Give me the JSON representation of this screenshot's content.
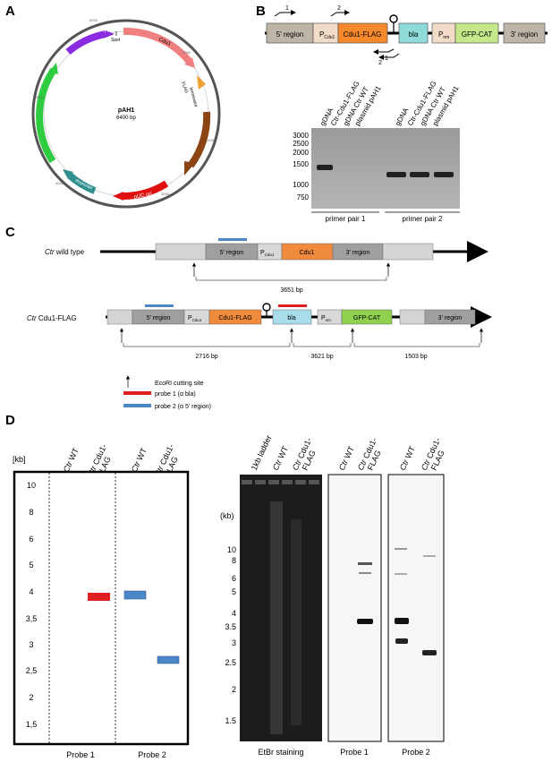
{
  "panel_labels": {
    "a": "A",
    "b": "B",
    "c": "C",
    "d": "D"
  },
  "plasmid": {
    "name": "pAH1",
    "size": "6400 bp",
    "features": {
      "three_region": "3'region",
      "cdu1": "Cdu1",
      "flag": "FLAG",
      "terminator": "terminator",
      "bla": "Bla",
      "puc_ori": "pUC ori",
      "promoter": "Promoter",
      "gfp_cat": "GFP-CAT",
      "spei": "SpeI"
    },
    "ticks": [
      "1000",
      "2000",
      "3000",
      "4000",
      "5000",
      "6000"
    ]
  },
  "construct_b": {
    "five_region": "5' region",
    "p": "P",
    "p_sub": "Cdu1",
    "cdu1_flag": "Cdu1-FLAG",
    "bla": "bla",
    "pnm": "P",
    "pnm_sub": "nm",
    "gfp_cat": "GFP-CAT",
    "three_region": "3' region",
    "primer_1": "1",
    "primer_2": "2",
    "primer_1r": "1",
    "primer_2r": "2"
  },
  "gel_b": {
    "lanes_1": [
      "gDNA",
      "Ctr-Cdu1-FLAG",
      "gDNA Ctr WT",
      "plasmid pAH1"
    ],
    "lanes_2": [
      "gDNA",
      "Ctr-Cdu1-FLAG",
      "gDNA Ctr WT",
      "plasmid pAH1"
    ],
    "markers": [
      "3000",
      "2500",
      "2000",
      "1500",
      "1000",
      "750"
    ],
    "pair1": "primer pair 1",
    "pair2": "primer pair 2"
  },
  "panel_c": {
    "wt_label_italic": "Ctr",
    "wt_label": " wild type",
    "flag_label_italic": "Ctr",
    "flag_label": " Cdu1-FLAG",
    "five_region": "5' region",
    "p": "P",
    "p_sub": "Cdu1",
    "cdu1": "Cdu1",
    "cdu1_flag": "Cdu1-FLAG",
    "three_region": "3' region",
    "bla": "bla",
    "pnm": "P",
    "pnm_sub": "nm",
    "gfp_cat": "GFP-CAT",
    "dist_wt": "3651 bp",
    "dist_1": "2716 bp",
    "dist_2": "3621 bp",
    "dist_3": "1503 bp",
    "legend_ecori": "EcoRI cutting site",
    "legend_probe1": "probe 1 (α bla)",
    "legend_probe2": "probe 2 (α 5' region)",
    "probe1_color": "#e02020",
    "probe2_color": "#4a86c8"
  },
  "panel_d_left": {
    "kb_label": "[kb]",
    "lanes": [
      "Ctr WT",
      "Ctr Cdu1-FLAG",
      "Ctr WT",
      "Ctr Cdu1-FLAG"
    ],
    "scale": [
      "10",
      "8",
      "6",
      "5",
      "4",
      "3,5",
      "3",
      "2,5",
      "2",
      "1,5"
    ],
    "probe1": "Probe 1",
    "probe2": "Probe 2"
  },
  "panel_d_right": {
    "lanes": [
      "1kb ladder",
      "Ctr WT",
      "Ctr Cdu1-FLAG",
      "Ctr WT",
      "Ctr Cdu1-FLAG",
      "Ctr WT",
      "Ctr Cdu1-FLAG"
    ],
    "kb_label": "(kb)",
    "scale": [
      "10",
      "8",
      "6",
      "5",
      "4",
      "3.5",
      "3",
      "2.5",
      "2",
      "1.5"
    ],
    "etbr": "EtBr staining",
    "probe1": "Probe 1",
    "probe2": "Probe 2"
  }
}
